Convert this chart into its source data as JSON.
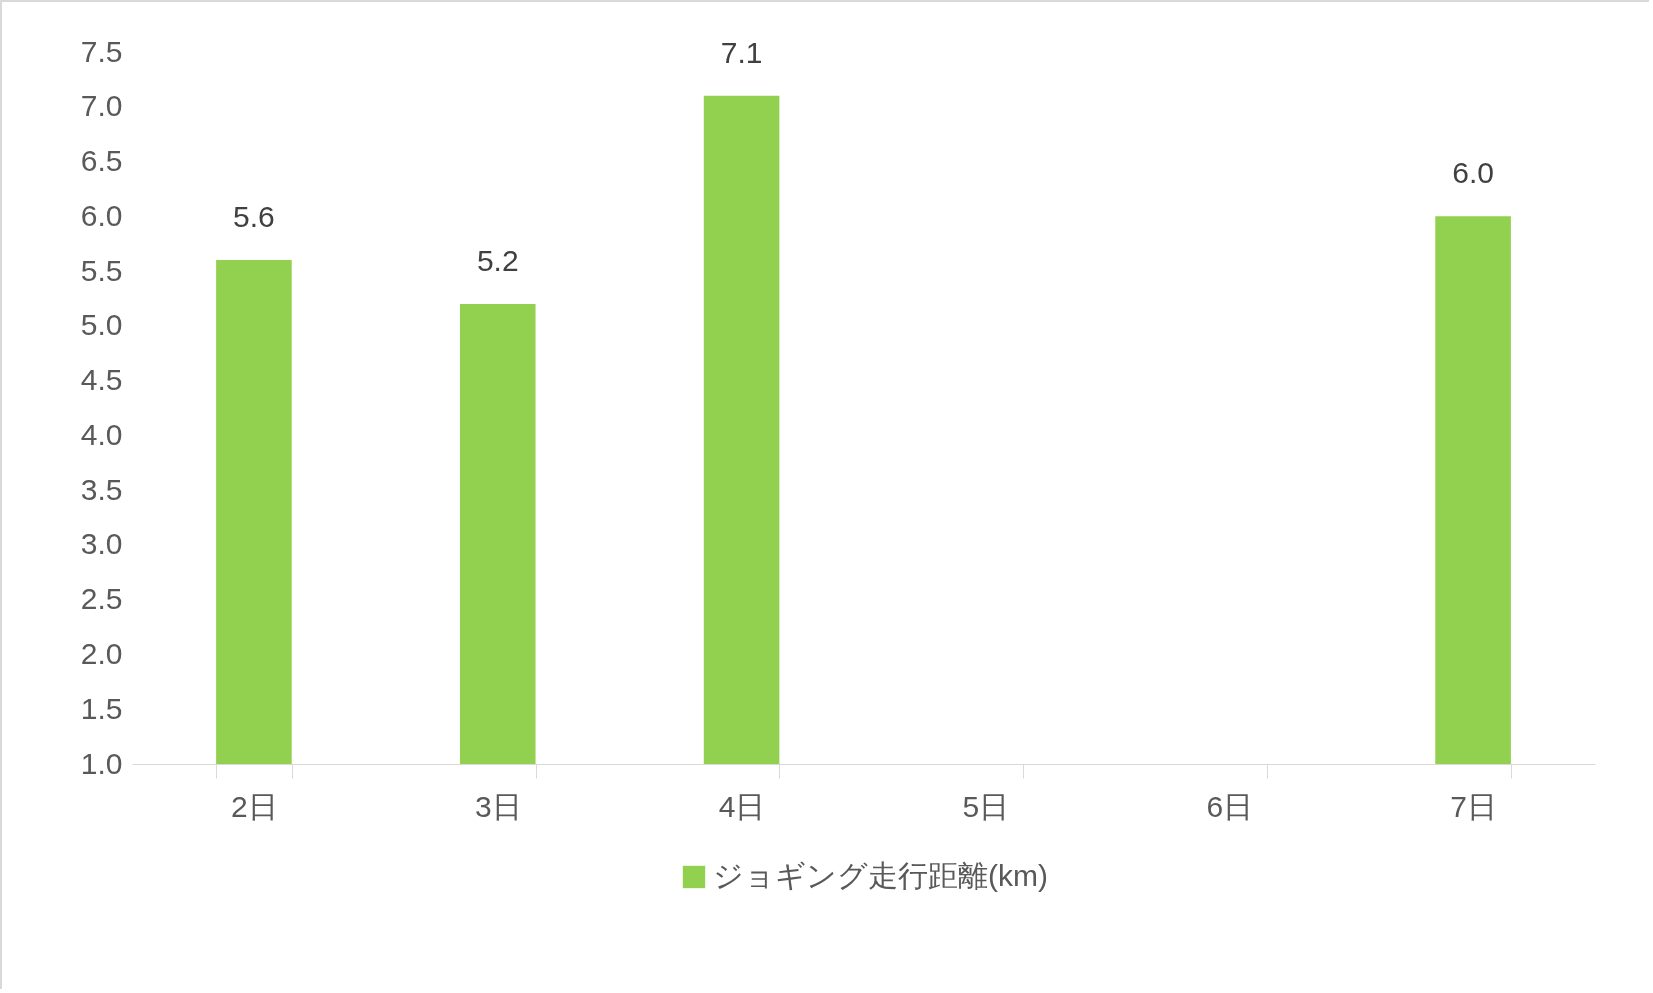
{
  "chart_data": {
    "type": "bar",
    "categories": [
      "2日",
      "3日",
      "4日",
      "5日",
      "6日",
      "7日"
    ],
    "series": [
      {
        "name": "ジョギング走行距離(km)",
        "color": "#92d050",
        "values": [
          5.6,
          5.2,
          7.1,
          null,
          null,
          6.0
        ],
        "value_labels": [
          "5.6",
          "5.2",
          "7.1",
          null,
          null,
          "6.0"
        ]
      }
    ],
    "ylim": [
      1.0,
      7.5
    ],
    "yticks": [
      {
        "value": 1,
        "label": "1.0"
      },
      1.5,
      {
        "value": 2,
        "label": "2.0"
      },
      2.5,
      {
        "value": 3,
        "label": "3.0"
      },
      3.5,
      {
        "value": 4,
        "label": "4.0"
      },
      4.5,
      {
        "value": 5,
        "label": "5.0"
      },
      5.5,
      {
        "value": 6,
        "label": "6.0"
      },
      6.5,
      {
        "value": 7,
        "label": "7.0"
      },
      7.5
    ],
    "grid": false,
    "legend": "bottom"
  }
}
